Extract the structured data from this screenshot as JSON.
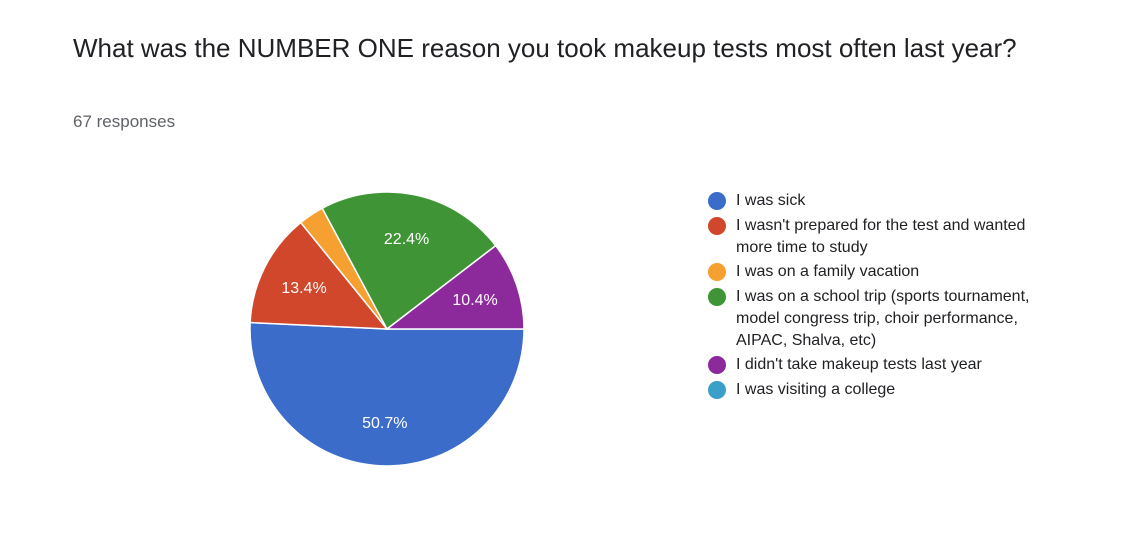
{
  "header": {
    "title": "What was the NUMBER ONE reason you took makeup tests most often last year?",
    "responses": "67 responses"
  },
  "chart_data": {
    "type": "pie",
    "title": "What was the NUMBER ONE reason you took makeup tests most often last year?",
    "categories": [
      "I was sick",
      "I wasn't prepared for the test and wanted more time to study",
      "I was on a family vacation",
      "I was on a school trip (sports tournament, model congress trip, choir performance, AIPAC, Shalva, etc)",
      "I didn't take makeup tests last year",
      "I was visiting a college"
    ],
    "values": [
      50.7,
      13.4,
      3.0,
      22.4,
      10.4,
      0
    ],
    "labels": [
      "50.7%",
      "13.4%",
      "",
      "22.4%",
      "10.4%",
      ""
    ],
    "colors": [
      "#3c6cc9",
      "#d0472b",
      "#f5a030",
      "#3f9535",
      "#8c2a9c",
      "#3a9fc9"
    ],
    "legend_position": "right"
  }
}
